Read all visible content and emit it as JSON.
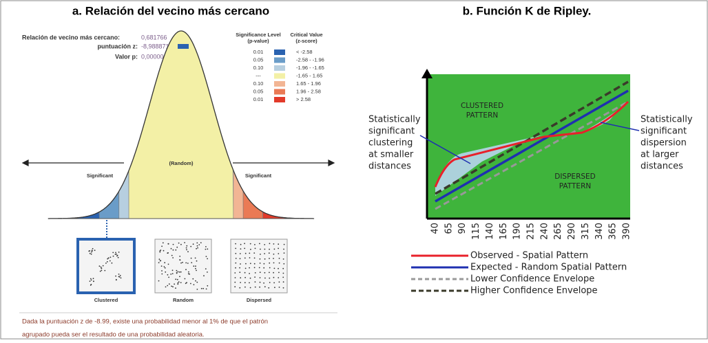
{
  "panel_a": {
    "title": "a. Relación del vecino más cercano",
    "stats": [
      {
        "label": "Relación de vecino más cercano:",
        "value": "0,681766"
      },
      {
        "label": "puntuación z:",
        "value": "-8,988871"
      },
      {
        "label": "Valor p:",
        "value": "0,000000"
      }
    ],
    "level_header": [
      "Significance Level",
      "(p-value)"
    ],
    "critical_header": [
      "Critical Value",
      "(z-score)"
    ],
    "legend_rows": [
      [
        "0.01",
        "< -2.58"
      ],
      [
        "0.05",
        "-2.58 - -1.96"
      ],
      [
        "0.10",
        "-1.96 - -1.65"
      ],
      [
        "---",
        "-1.65 - 1.65"
      ],
      [
        "0.10",
        "1.65 - 1.96"
      ],
      [
        "0.05",
        "1.96 - 2.58"
      ],
      [
        "0.01",
        "> 2.58"
      ]
    ],
    "curve_labels": {
      "left": "Significant",
      "center": "(Random)",
      "right": "Significant"
    },
    "patterns": [
      "Clustered",
      "Random",
      "Dispersed"
    ],
    "note": [
      "Dada la puntuación z de -8.99, existe una probabilidad menor al 1% de que el patrón",
      "agrupado pueda ser el resultado de una probabilidad aleatoria."
    ]
  },
  "panel_b": {
    "title": "b. Función K de Ripley.",
    "clustered": [
      "CLUSTERED",
      "PATTERN"
    ],
    "dispersed": [
      "DISPERSED",
      "PATTERN"
    ],
    "left_note": [
      "Statistically",
      "significant",
      "clustering",
      "at smaller",
      "distances"
    ],
    "right_note": [
      "Statistically",
      "significant",
      "dispersion",
      "at larger",
      "distances"
    ],
    "x_labels": [
      "40",
      "65",
      "90",
      "115",
      "140",
      "165",
      "190",
      "215",
      "240",
      "265",
      "290",
      "315",
      "340",
      "365",
      "390"
    ],
    "legend": [
      "Observed - Spatial Pattern",
      "Expected - Random Spatial Pattern",
      "Lower Confidence Envelope",
      "Higher Confidence Envelope"
    ]
  }
}
